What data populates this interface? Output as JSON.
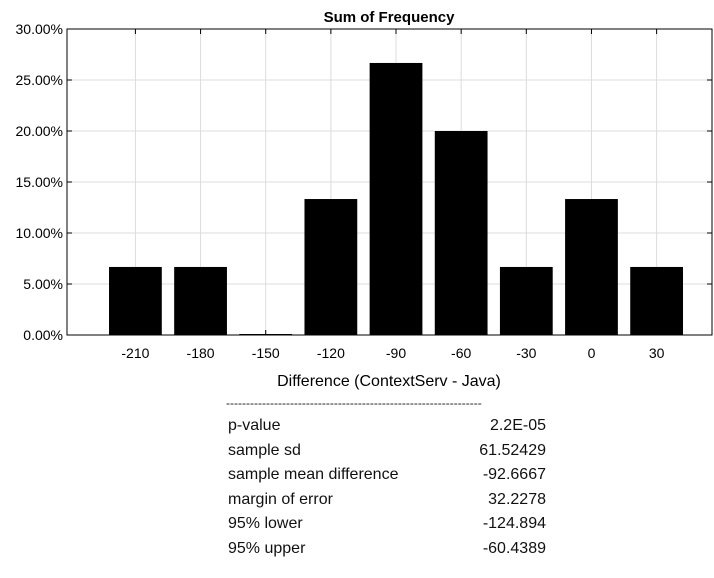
{
  "chart_data": {
    "type": "bar",
    "title": "Sum of Frequency",
    "xlabel": "Difference (ContextServ - Java)",
    "ylabel": "",
    "categories": [
      "-210",
      "-180",
      "-150",
      "-120",
      "-90",
      "-60",
      "-30",
      "0",
      "30"
    ],
    "values": [
      6.67,
      6.67,
      0,
      13.33,
      26.67,
      20.0,
      6.67,
      13.33,
      6.67
    ],
    "ylim": [
      0,
      30
    ],
    "yticks": [
      "0.00%",
      "5.00%",
      "10.00%",
      "15.00%",
      "20.00%",
      "25.00%",
      "30.00%"
    ],
    "grid": true,
    "bar_color": "#000000"
  },
  "stats": {
    "divider": "----------------------------------------------------------------",
    "rows": [
      {
        "label": "p-value",
        "value": "2.2E-05"
      },
      {
        "label": "sample sd",
        "value": "61.52429"
      },
      {
        "label": "sample mean difference",
        "value": "-92.6667"
      },
      {
        "label": "margin of error",
        "value": "32.2278"
      },
      {
        "label": "95% lower",
        "value": "-124.894"
      },
      {
        "label": "95% upper",
        "value": "-60.4389"
      }
    ]
  }
}
